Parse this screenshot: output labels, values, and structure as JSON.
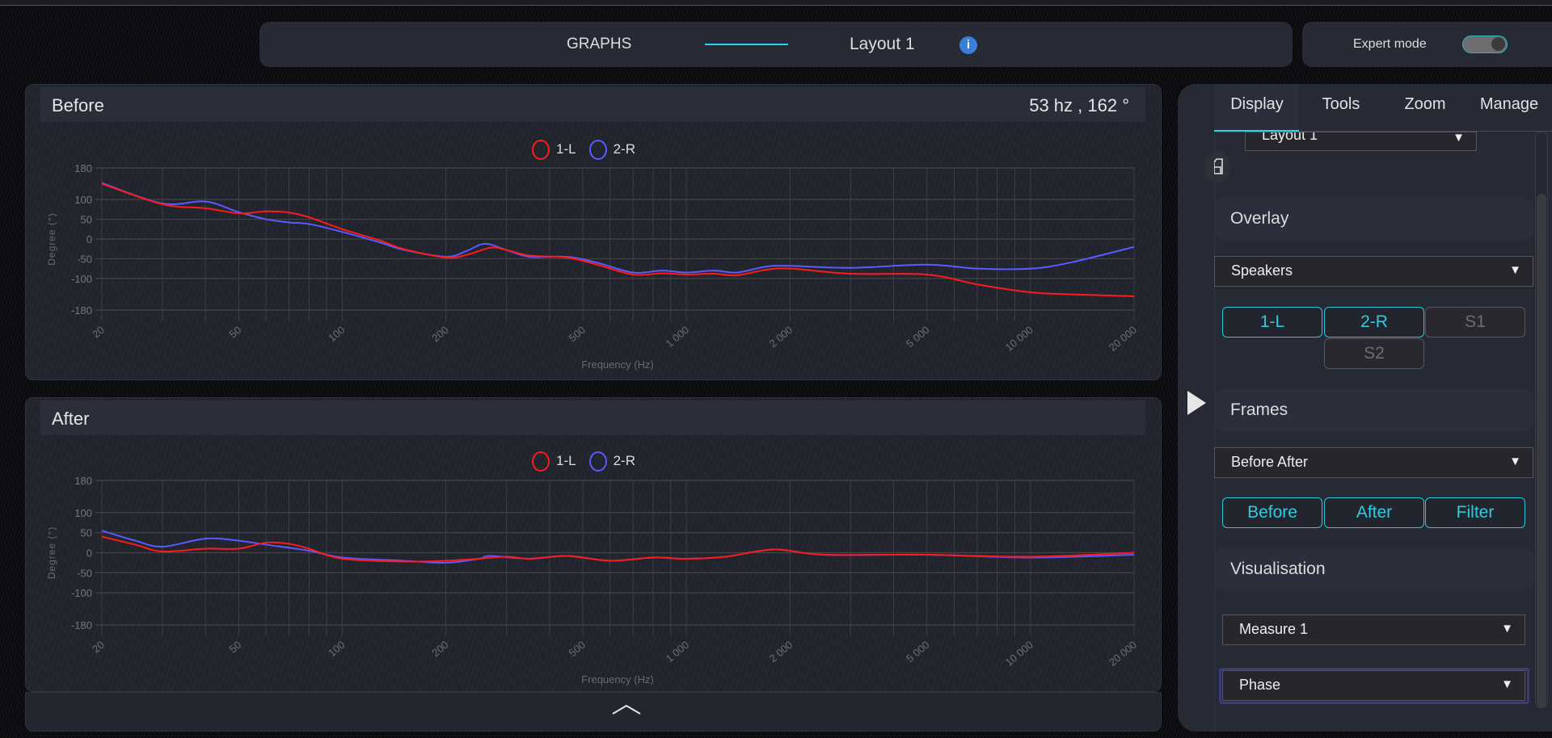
{
  "header": {
    "title": "GRAPHS",
    "layout": "Layout 1",
    "expert_mode_label": "Expert mode",
    "expert_mode_on": true
  },
  "before": {
    "title": "Before",
    "readout": "53 hz , 162 °"
  },
  "after": {
    "title": "After"
  },
  "legend": [
    {
      "label": "1-L",
      "color": "#ff1a1a"
    },
    {
      "label": "2-R",
      "color": "#5a5aff"
    }
  ],
  "sidebar": {
    "tabs": [
      "Display",
      "Tools",
      "Zoom",
      "Manage"
    ],
    "active_tab": "Display",
    "layout_select": "Layout 1",
    "overlay": {
      "title": "Overlay",
      "select": "Speakers",
      "buttons": [
        {
          "label": "1-L",
          "active": true
        },
        {
          "label": "2-R",
          "active": true
        },
        {
          "label": "S1",
          "active": false
        },
        {
          "label": "S2",
          "active": false
        }
      ]
    },
    "frames": {
      "title": "Frames",
      "select": "Before After",
      "buttons": [
        {
          "label": "Before",
          "active": true
        },
        {
          "label": "After",
          "active": true
        },
        {
          "label": "Filter",
          "active": true
        }
      ]
    },
    "visualisation": {
      "title": "Visualisation",
      "measure_select": "Measure 1",
      "type_select": "Phase"
    }
  },
  "chart_data": [
    {
      "type": "line",
      "title": "Before",
      "xlabel": "Frequency (Hz)",
      "ylabel": "Degree (°)",
      "xscale": "log",
      "xlim": [
        20,
        20000
      ],
      "ylim": [
        -180,
        180
      ],
      "xticks": [
        20,
        50,
        100,
        200,
        500,
        1000,
        2000,
        5000,
        10000,
        20000
      ],
      "xtick_labels": [
        "20",
        "50",
        "100",
        "200",
        "500",
        "1 000",
        "2 000",
        "5 000",
        "10 000",
        "20 000"
      ],
      "yticks": [
        180,
        100,
        50,
        0,
        -50,
        -100,
        -180
      ],
      "yticks_labels": [
        "180",
        "100",
        "50",
        "0",
        "-50",
        "-100",
        "-180"
      ],
      "grid": true,
      "legend": "top-center",
      "series": [
        {
          "name": "1-L",
          "color": "#ff1a1a",
          "x": [
            20,
            30,
            40,
            50,
            60,
            70,
            80,
            100,
            130,
            150,
            200,
            230,
            270,
            300,
            350,
            450,
            550,
            700,
            850,
            1000,
            1200,
            1400,
            1700,
            2000,
            3000,
            5000,
            7000,
            10000,
            13000,
            20000
          ],
          "y": [
            140,
            88,
            78,
            65,
            70,
            67,
            55,
            25,
            -5,
            -25,
            -47,
            -40,
            -22,
            -28,
            -42,
            -47,
            -65,
            -90,
            -87,
            -90,
            -88,
            -92,
            -78,
            -75,
            -88,
            -90,
            -115,
            -135,
            -140,
            -145
          ]
        },
        {
          "name": "2-R",
          "color": "#5a5aff",
          "x": [
            20,
            30,
            40,
            50,
            60,
            70,
            80,
            100,
            130,
            150,
            200,
            230,
            260,
            300,
            350,
            450,
            550,
            700,
            850,
            1000,
            1200,
            1400,
            1700,
            2000,
            3000,
            5000,
            7000,
            10000,
            13000,
            20000
          ],
          "y": [
            142,
            90,
            95,
            68,
            50,
            42,
            38,
            18,
            -10,
            -27,
            -45,
            -30,
            -12,
            -28,
            -45,
            -45,
            -60,
            -85,
            -80,
            -85,
            -80,
            -85,
            -70,
            -68,
            -73,
            -65,
            -75,
            -75,
            -60,
            -20
          ]
        }
      ]
    },
    {
      "type": "line",
      "title": "After",
      "xlabel": "Frequency (Hz)",
      "ylabel": "Degree (°)",
      "xscale": "log",
      "xlim": [
        20,
        20000
      ],
      "ylim": [
        -180,
        180
      ],
      "xticks": [
        20,
        50,
        100,
        200,
        500,
        1000,
        2000,
        5000,
        10000,
        20000
      ],
      "xtick_labels": [
        "20",
        "50",
        "100",
        "200",
        "500",
        "1 000",
        "2 000",
        "5 000",
        "10 000",
        "20 000"
      ],
      "yticks": [
        180,
        100,
        50,
        0,
        -50,
        -100,
        -180
      ],
      "yticks_labels": [
        "180",
        "100",
        "50",
        "0",
        "-50",
        "-100",
        "-180"
      ],
      "grid": true,
      "legend": "top-center",
      "series": [
        {
          "name": "1-L",
          "color": "#ff1a1a",
          "x": [
            20,
            25,
            30,
            40,
            50,
            60,
            70,
            80,
            100,
            150,
            200,
            250,
            300,
            350,
            450,
            600,
            800,
            1000,
            1300,
            1800,
            2500,
            5000,
            10000,
            20000
          ],
          "y": [
            40,
            20,
            3,
            10,
            10,
            25,
            22,
            10,
            -15,
            -22,
            -20,
            -15,
            -10,
            -15,
            -8,
            -20,
            -12,
            -15,
            -10,
            8,
            -5,
            -5,
            -10,
            0
          ]
        },
        {
          "name": "2-R",
          "color": "#5a5aff",
          "x": [
            20,
            25,
            30,
            40,
            50,
            60,
            80,
            100,
            150,
            200,
            250,
            270,
            350,
            450,
            600,
            800,
            1000,
            1300,
            1800,
            2500,
            5000,
            10000,
            20000
          ],
          "y": [
            55,
            30,
            15,
            35,
            30,
            20,
            5,
            -12,
            -20,
            -25,
            -15,
            -8,
            -15,
            -8,
            -20,
            -12,
            -15,
            -10,
            8,
            -5,
            -5,
            -12,
            -5
          ]
        }
      ]
    }
  ]
}
